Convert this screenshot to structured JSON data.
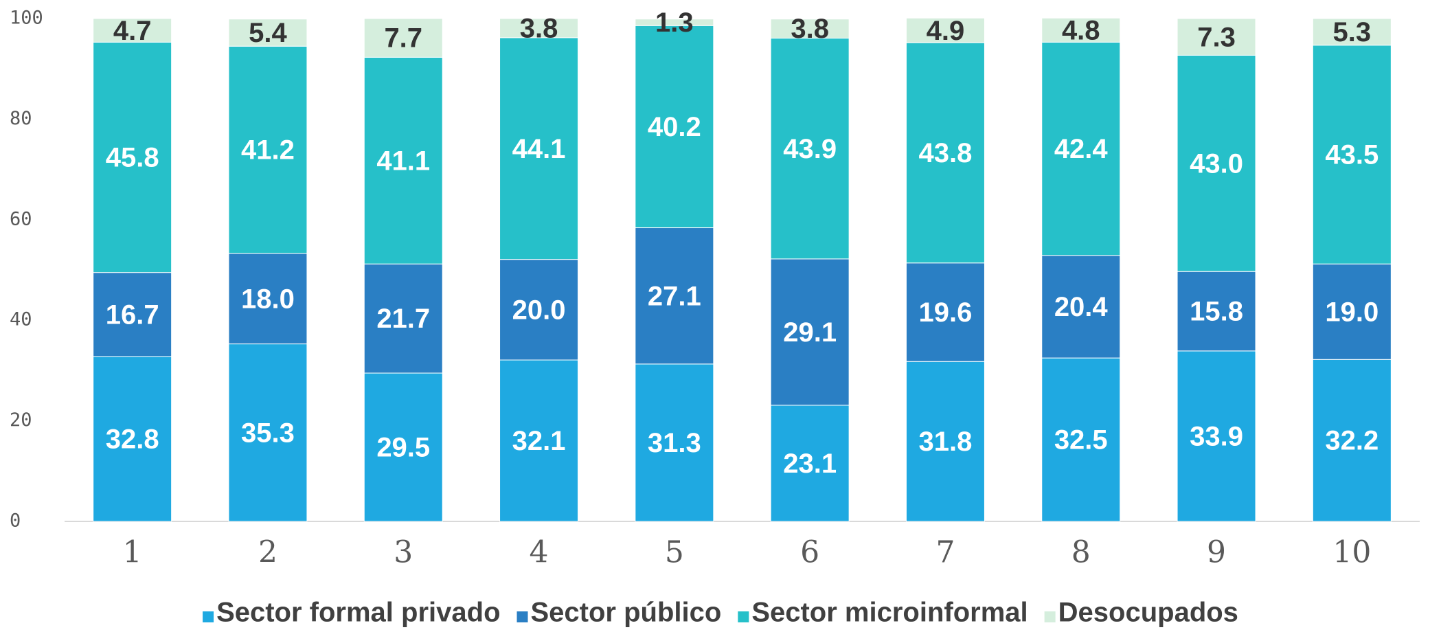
{
  "chart_data": {
    "type": "stacked_bar",
    "categories": [
      "1",
      "2",
      "3",
      "4",
      "5",
      "6",
      "7",
      "8",
      "9",
      "10"
    ],
    "series": [
      {
        "name": "Sector formal privado",
        "color": "#1fa9e1",
        "values": [
          32.8,
          35.3,
          29.5,
          32.1,
          31.3,
          23.1,
          31.8,
          32.5,
          33.9,
          32.2
        ],
        "value_labels": [
          "32.8",
          "35.3",
          "29.5",
          "32.1",
          "31.3",
          "23.1",
          "31.8",
          "32.5",
          "33.9",
          "32.2"
        ]
      },
      {
        "name": "Sector público",
        "color": "#2a7fc4",
        "values": [
          16.7,
          18,
          21.7,
          20,
          27.1,
          29.1,
          19.6,
          20.4,
          15.8,
          19
        ],
        "value_labels": [
          "16.7",
          "18.0",
          "21.7",
          "20.0",
          "27.1",
          "29.1",
          "19.6",
          "20.4",
          "15.8",
          "19.0"
        ]
      },
      {
        "name": "Sector microinformal",
        "color": "#26c0c9",
        "values": [
          45.8,
          41.2,
          41.1,
          44.1,
          40.2,
          43.9,
          43.8,
          42.4,
          43,
          43.5
        ],
        "value_labels": [
          "45.8",
          "41.2",
          "41.1",
          "44.1",
          "40.2",
          "43.9",
          "43.8",
          "42.4",
          "43.0",
          "43.5"
        ]
      },
      {
        "name": "Desocupados",
        "color": "#d5eedd",
        "values": [
          4.7,
          5.4,
          7.7,
          3.8,
          1.3,
          3.8,
          4.9,
          4.8,
          7.3,
          5.3
        ],
        "value_labels": [
          "4.7",
          "5.4",
          "7.7",
          "3.8",
          "1.3",
          "3.8",
          "4.9",
          "4.8",
          "7.3",
          "5.3"
        ]
      }
    ],
    "ylim": [
      0,
      100
    ],
    "yticks": [
      0,
      20,
      40,
      60,
      80,
      100
    ],
    "legend": "bottom"
  }
}
